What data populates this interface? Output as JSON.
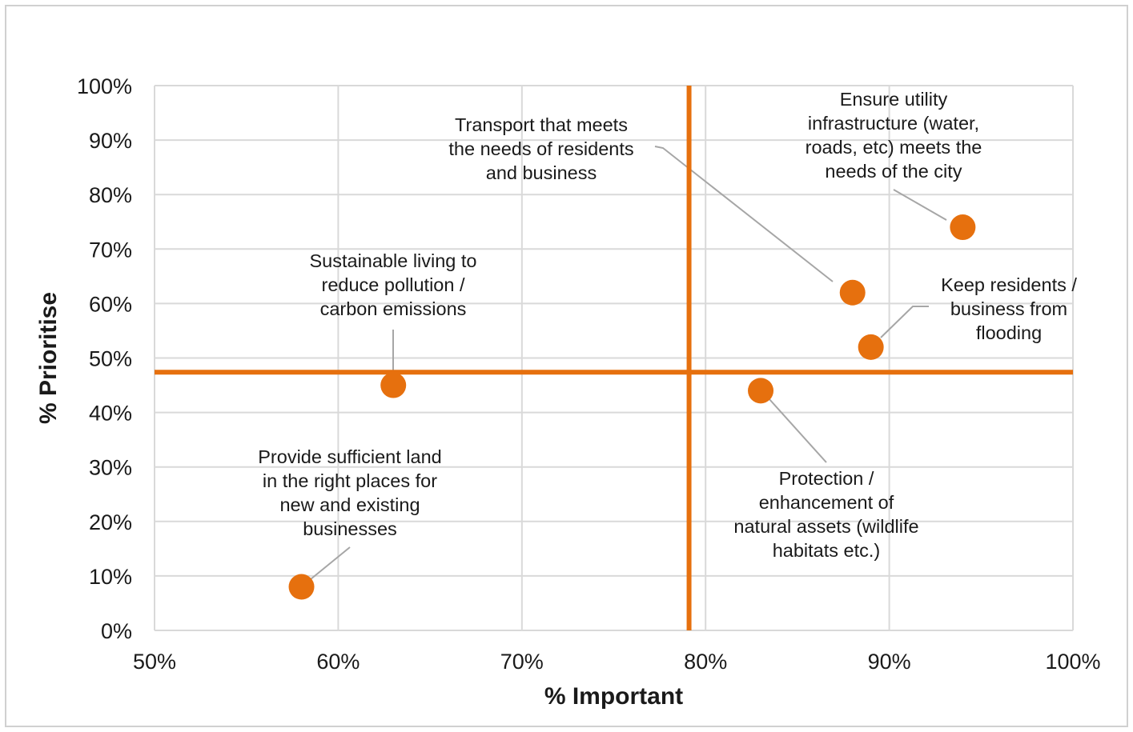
{
  "chart_data": {
    "type": "scatter",
    "title": "",
    "xlabel": "% Important",
    "ylabel": "% Prioritise",
    "xlim": [
      0.5,
      1.0
    ],
    "ylim": [
      0,
      1.0
    ],
    "x_ticks": [
      "50%",
      "60%",
      "70%",
      "80%",
      "90%",
      "100%"
    ],
    "y_ticks": [
      "0%",
      "10%",
      "20%",
      "30%",
      "40%",
      "50%",
      "60%",
      "70%",
      "80%",
      "90%",
      "100%"
    ],
    "grid": true,
    "reference_lines": {
      "x": 0.791,
      "y": 0.474
    },
    "colors": {
      "point": "#E6700E",
      "reference_line": "#E6700E",
      "grid": "#d9d9d9",
      "leader": "#a6a6a6"
    },
    "points": [
      {
        "label_lines": [
          "Transport that meets",
          "the needs of residents",
          "and business"
        ],
        "x": 0.88,
        "y": 0.62
      },
      {
        "label_lines": [
          "Ensure utility",
          "infrastructure (water,",
          "roads, etc) meets the",
          "needs of the city"
        ],
        "x": 0.94,
        "y": 0.74
      },
      {
        "label_lines": [
          "Keep residents /",
          "business from",
          "flooding"
        ],
        "x": 0.89,
        "y": 0.52
      },
      {
        "label_lines": [
          "Sustainable living to",
          "reduce pollution  /",
          "carbon emissions"
        ],
        "x": 0.63,
        "y": 0.45
      },
      {
        "label_lines": [
          "Protection /",
          "enhancement of",
          "natural assets (wildlife",
          "habitats etc.)"
        ],
        "x": 0.83,
        "y": 0.44
      },
      {
        "label_lines": [
          "Provide sufficient land",
          "in the right places for",
          "new and existing",
          "businesses"
        ],
        "x": 0.58,
        "y": 0.08
      }
    ]
  }
}
